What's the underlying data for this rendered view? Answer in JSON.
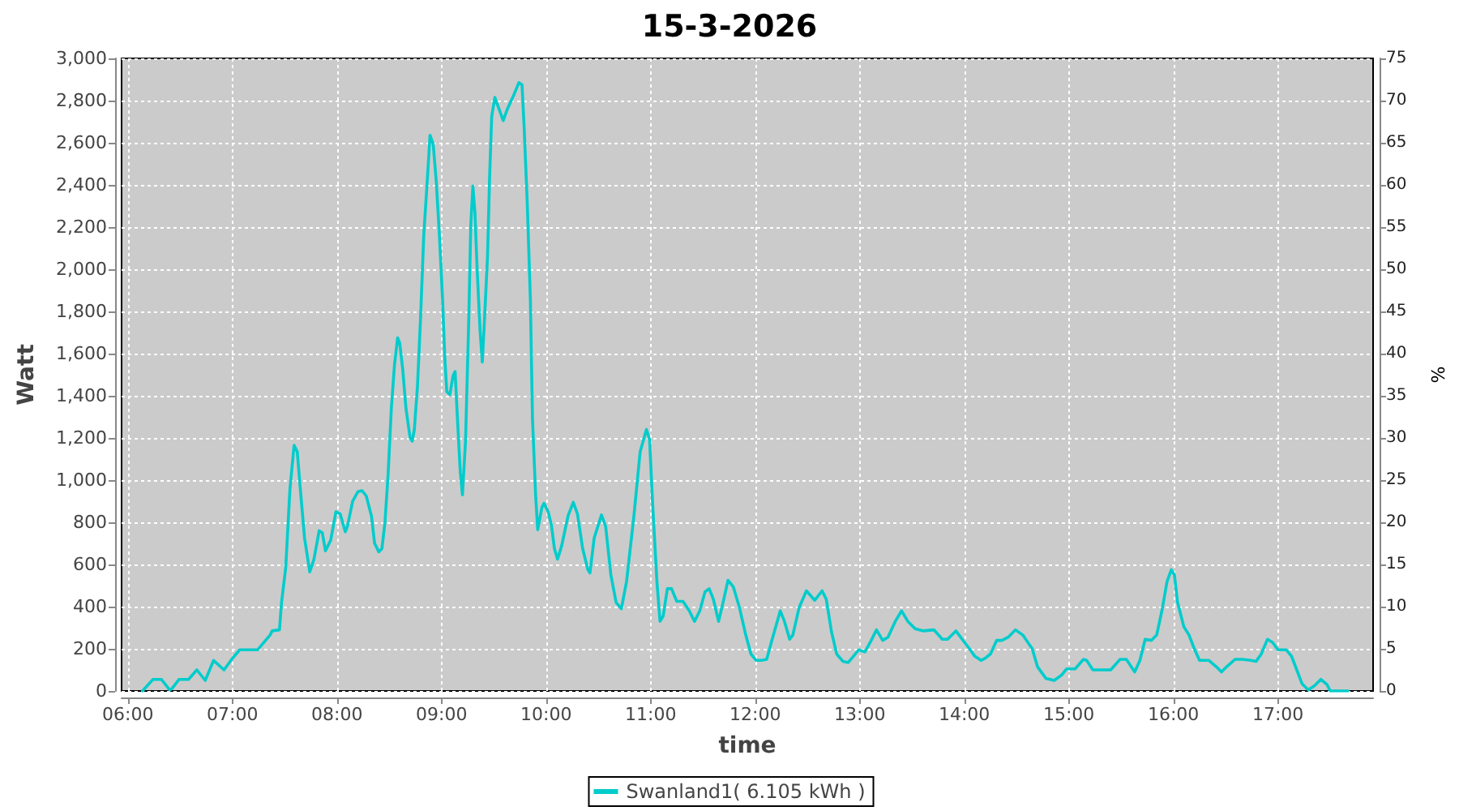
{
  "chart_data": {
    "type": "line",
    "title": "15-3-2026",
    "xlabel": "time",
    "ylabel": "Watt",
    "y2label": "%",
    "x": [
      6.14,
      6.24,
      6.32,
      6.4,
      6.42,
      6.49,
      6.58,
      6.66,
      6.74,
      6.82,
      6.92,
      7.0,
      7.07,
      7.15,
      7.24,
      7.36,
      7.38,
      7.45,
      7.47,
      7.51,
      7.55,
      7.59,
      7.62,
      7.65,
      7.69,
      7.74,
      7.78,
      7.83,
      7.86,
      7.89,
      7.94,
      7.99,
      8.03,
      8.08,
      8.1,
      8.15,
      8.2,
      8.24,
      8.28,
      8.33,
      8.36,
      8.4,
      8.43,
      8.46,
      8.49,
      8.52,
      8.55,
      8.58,
      8.6,
      8.63,
      8.66,
      8.7,
      8.72,
      8.74,
      8.77,
      8.8,
      8.83,
      8.87,
      8.89,
      8.92,
      8.95,
      8.98,
      9.01,
      9.03,
      9.05,
      9.08,
      9.11,
      9.13,
      9.15,
      9.18,
      9.2,
      9.23,
      9.26,
      9.28,
      9.3,
      9.32,
      9.34,
      9.37,
      9.39,
      9.41,
      9.44,
      9.46,
      9.48,
      9.51,
      9.55,
      9.59,
      9.63,
      9.69,
      9.74,
      9.77,
      9.79,
      9.82,
      9.85,
      9.87,
      9.9,
      9.92,
      9.96,
      9.98,
      10.02,
      10.05,
      10.08,
      10.11,
      10.15,
      10.21,
      10.26,
      10.3,
      10.35,
      10.4,
      10.42,
      10.46,
      10.53,
      10.57,
      10.62,
      10.67,
      10.72,
      10.77,
      10.84,
      10.9,
      10.96,
      10.99,
      11.02,
      11.06,
      11.09,
      11.12,
      11.16,
      11.2,
      11.25,
      11.31,
      11.37,
      11.42,
      11.47,
      11.52,
      11.56,
      11.6,
      11.65,
      11.7,
      11.74,
      11.79,
      11.85,
      11.91,
      11.96,
      12.01,
      12.06,
      12.11,
      12.16,
      12.24,
      12.28,
      12.33,
      12.36,
      12.42,
      12.49,
      12.57,
      12.64,
      12.68,
      12.73,
      12.78,
      12.84,
      12.89,
      12.94,
      12.99,
      13.05,
      13.11,
      13.16,
      13.22,
      13.27,
      13.34,
      13.4,
      13.46,
      13.53,
      13.61,
      13.71,
      13.79,
      13.84,
      13.92,
      13.98,
      14.05,
      14.1,
      14.16,
      14.2,
      14.25,
      14.31,
      14.36,
      14.42,
      14.49,
      14.56,
      14.65,
      14.7,
      14.78,
      14.86,
      14.93,
      14.98,
      15.06,
      15.14,
      15.17,
      15.23,
      15.29,
      15.4,
      15.49,
      15.55,
      15.63,
      15.68,
      15.73,
      15.79,
      15.84,
      15.89,
      15.94,
      15.98,
      16.01,
      16.04,
      16.1,
      16.15,
      16.2,
      16.25,
      16.3,
      16.34,
      16.41,
      16.46,
      16.51,
      16.59,
      16.66,
      16.74,
      16.79,
      16.84,
      16.9,
      16.95,
      17.0,
      17.08,
      17.13,
      17.18,
      17.23,
      17.29,
      17.35,
      17.41,
      17.47,
      17.5,
      17.57,
      17.67
    ],
    "series": [
      {
        "name": "Swanland1( 6.105 kWh )",
        "color": "#00cccc",
        "values": [
          0,
          55,
          55,
          5,
          10,
          55,
          55,
          100,
          50,
          145,
          100,
          155,
          195,
          195,
          195,
          265,
          285,
          290,
          420,
          585,
          955,
          1165,
          1135,
          955,
          725,
          565,
          625,
          760,
          750,
          665,
          715,
          850,
          840,
          755,
          780,
          900,
          945,
          950,
          925,
          830,
          700,
          660,
          675,
          805,
          1035,
          1340,
          1545,
          1675,
          1650,
          1520,
          1340,
          1200,
          1185,
          1240,
          1445,
          1775,
          2160,
          2470,
          2635,
          2595,
          2415,
          2160,
          1855,
          1595,
          1420,
          1405,
          1495,
          1515,
          1315,
          1035,
          930,
          1190,
          1750,
          2210,
          2395,
          2265,
          2005,
          1700,
          1560,
          1750,
          2060,
          2440,
          2725,
          2815,
          2760,
          2705,
          2760,
          2825,
          2885,
          2875,
          2675,
          2315,
          1855,
          1290,
          930,
          765,
          870,
          890,
          850,
          790,
          675,
          625,
          690,
          830,
          895,
          840,
          675,
          575,
          560,
          725,
          835,
          780,
          550,
          420,
          390,
          520,
          830,
          1135,
          1240,
          1190,
          880,
          520,
          330,
          355,
          485,
          485,
          425,
          425,
          380,
          330,
          380,
          470,
          485,
          435,
          330,
          435,
          525,
          495,
          395,
          265,
          175,
          145,
          145,
          150,
          240,
          380,
          330,
          245,
          265,
          395,
          475,
          430,
          475,
          435,
          280,
          175,
          140,
          135,
          165,
          195,
          185,
          240,
          290,
          240,
          255,
          330,
          380,
          330,
          295,
          285,
          290,
          245,
          245,
          285,
          245,
          200,
          165,
          145,
          155,
          175,
          240,
          240,
          255,
          290,
          265,
          200,
          115,
          60,
          50,
          75,
          105,
          105,
          150,
          145,
          100,
          100,
          100,
          150,
          150,
          90,
          145,
          245,
          240,
          265,
          380,
          520,
          575,
          550,
          420,
          305,
          265,
          200,
          145,
          145,
          145,
          115,
          90,
          115,
          150,
          150,
          145,
          140,
          175,
          245,
          230,
          195,
          195,
          165,
          100,
          35,
          5,
          25,
          55,
          30,
          0,
          0,
          0
        ]
      }
    ],
    "xlim": [
      5.94,
      17.91
    ],
    "xticks": [
      {
        "value": 6,
        "label": "06:00"
      },
      {
        "value": 7,
        "label": "07:00"
      },
      {
        "value": 8,
        "label": "08:00"
      },
      {
        "value": 9,
        "label": "09:00"
      },
      {
        "value": 10,
        "label": "10:00"
      },
      {
        "value": 11,
        "label": "11:00"
      },
      {
        "value": 12,
        "label": "12:00"
      },
      {
        "value": 13,
        "label": "13:00"
      },
      {
        "value": 14,
        "label": "14:00"
      },
      {
        "value": 15,
        "label": "15:00"
      },
      {
        "value": 16,
        "label": "16:00"
      },
      {
        "value": 17,
        "label": "17:00"
      }
    ],
    "ylim": [
      0,
      3000
    ],
    "yticks": [
      0,
      200,
      400,
      600,
      800,
      {
        "value": 1000,
        "label": "1,000"
      },
      {
        "value": 1200,
        "label": "1,200"
      },
      {
        "value": 1400,
        "label": "1,400"
      },
      {
        "value": 1600,
        "label": "1,600"
      },
      {
        "value": 1800,
        "label": "1,800"
      },
      {
        "value": 2000,
        "label": "2,000"
      },
      {
        "value": 2200,
        "label": "2,200"
      },
      {
        "value": 2400,
        "label": "2,400"
      },
      {
        "value": 2600,
        "label": "2,600"
      },
      {
        "value": 2800,
        "label": "2,800"
      },
      {
        "value": 3000,
        "label": "3,000"
      }
    ],
    "y2lim": [
      0,
      75
    ],
    "y2ticks": [
      0,
      5,
      10,
      15,
      20,
      25,
      30,
      35,
      40,
      45,
      50,
      55,
      60,
      65,
      70,
      75
    ],
    "grid": true,
    "legend": "bottom"
  }
}
